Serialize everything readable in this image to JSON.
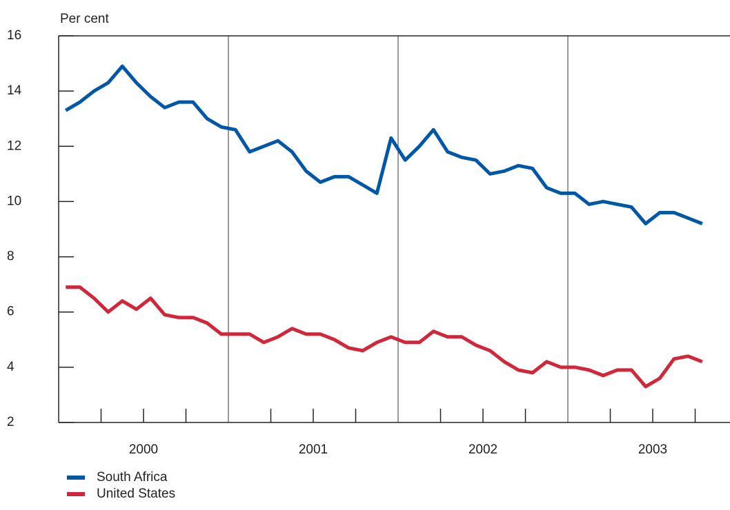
{
  "chart_data": {
    "type": "line",
    "y_label": "Per cent",
    "categories": [
      null,
      null,
      null,
      null,
      null,
      null,
      "2000",
      null,
      null,
      null,
      null,
      null,
      null,
      null,
      null,
      null,
      null,
      null,
      "2001",
      null,
      null,
      null,
      null,
      null,
      null,
      null,
      null,
      null,
      null,
      null,
      "2002",
      null,
      null,
      null,
      null,
      null,
      null,
      null,
      null,
      null,
      null,
      null,
      "2003",
      null,
      null,
      null
    ],
    "series": [
      {
        "name": "South Africa",
        "color": "#0057a8",
        "values": [
          13.3,
          13.6,
          14.0,
          14.3,
          14.9,
          14.3,
          13.8,
          13.4,
          13.6,
          13.6,
          13.0,
          12.7,
          12.6,
          11.8,
          12.0,
          12.2,
          11.8,
          11.1,
          10.7,
          10.9,
          10.9,
          10.6,
          10.3,
          12.3,
          11.5,
          12.0,
          12.6,
          11.8,
          11.6,
          11.5,
          11.0,
          11.1,
          11.3,
          11.2,
          10.5,
          10.3,
          10.3,
          9.9,
          10.0,
          9.9,
          9.8,
          9.2,
          9.6,
          9.6,
          9.4,
          9.2
        ]
      },
      {
        "name": "United States",
        "color": "#d0273a",
        "values": [
          6.9,
          6.9,
          6.5,
          6.0,
          6.4,
          6.1,
          6.5,
          5.9,
          5.8,
          5.8,
          5.6,
          5.2,
          5.2,
          5.2,
          4.9,
          5.1,
          5.4,
          5.2,
          5.2,
          5.0,
          4.7,
          4.6,
          4.9,
          5.1,
          4.9,
          4.9,
          5.3,
          5.1,
          5.1,
          4.8,
          4.6,
          4.2,
          3.9,
          3.8,
          4.2,
          4.0,
          4.0,
          3.9,
          3.7,
          3.9,
          3.9,
          3.3,
          3.6,
          4.3,
          4.4,
          4.2
        ]
      }
    ],
    "ylim": [
      2,
      16
    ],
    "yticks": [
      2,
      4,
      6,
      8,
      10,
      12,
      14,
      16
    ]
  }
}
